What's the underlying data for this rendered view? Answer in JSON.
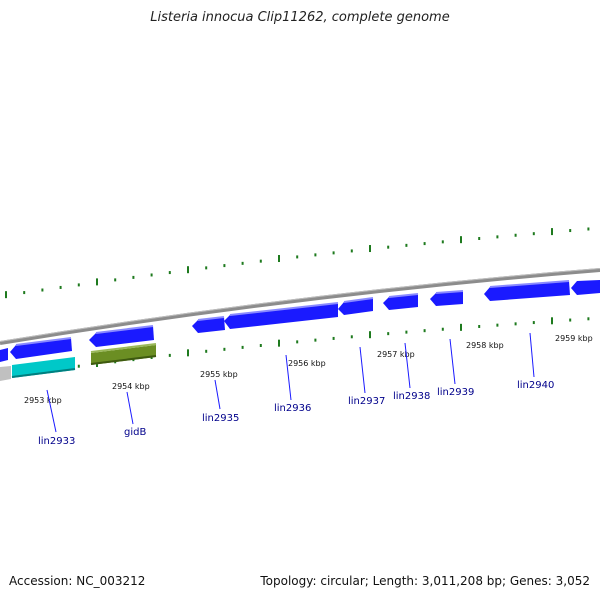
{
  "title": "Listeria innocua Clip11262, complete genome",
  "footer": {
    "accession": "Accession: NC_003212",
    "summary": "Topology: circular; Length: 3,011,208 bp; Genes: 3,052"
  },
  "colors": {
    "forward_gene": "#1a1aff",
    "reverse_gene": "#00c8c8",
    "gidB": "#6b8e23",
    "grey_gene": "#c0c0c0",
    "backbone": "#8c8c8c",
    "ticks": "#1e7a1e",
    "label": "#00008b"
  },
  "kbp_labels": [
    "2953 kbp",
    "2954 kbp",
    "2955 kbp",
    "2956 kbp",
    "2957 kbp",
    "2958 kbp",
    "2959 kbp"
  ],
  "genes": [
    {
      "name": "lin2933"
    },
    {
      "name": "gidB"
    },
    {
      "name": "lin2935"
    },
    {
      "name": "lin2936"
    },
    {
      "name": "lin2937"
    },
    {
      "name": "lin2938"
    },
    {
      "name": "lin2939"
    },
    {
      "name": "lin2940"
    }
  ]
}
